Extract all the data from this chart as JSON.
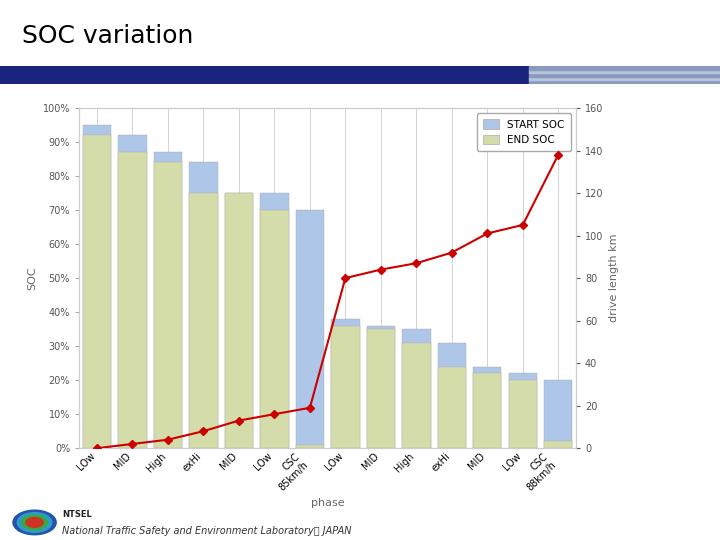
{
  "title": "SOC variation",
  "categories": [
    "LOw",
    "MID",
    "High",
    "exHi",
    "MID",
    "LOw",
    "CSC\n85km/h",
    "LOw",
    "MID",
    "High",
    "exHi",
    "MID",
    "LOw",
    "CSC\n88km/h"
  ],
  "start_soc": [
    95,
    92,
    87,
    84,
    75,
    75,
    70,
    38,
    36,
    35,
    31,
    24,
    22,
    20
  ],
  "end_soc": [
    92,
    87,
    84,
    75,
    75,
    70,
    1,
    36,
    35,
    31,
    24,
    22,
    20,
    2
  ],
  "drive_length_vals": [
    0,
    2,
    4,
    8,
    13,
    16,
    19,
    80,
    84,
    87,
    92,
    101,
    105,
    138
  ],
  "bar_width": 0.8,
  "start_color": "#aec6e8",
  "end_color": "#d4dca9",
  "line_color": "#cc0000",
  "ylabel_left": "SOC",
  "ylabel_right": "drive length km",
  "xlabel": "phase",
  "ylim_left": [
    0,
    1.0
  ],
  "ylim_right": [
    0,
    160
  ],
  "legend_labels": [
    "START SOC",
    "END SOC"
  ],
  "title_fontsize": 18,
  "axis_fontsize": 7,
  "label_fontsize": 8,
  "ntsel_text": "National Traffic Safety and Environment Laboratory， JAPAN"
}
